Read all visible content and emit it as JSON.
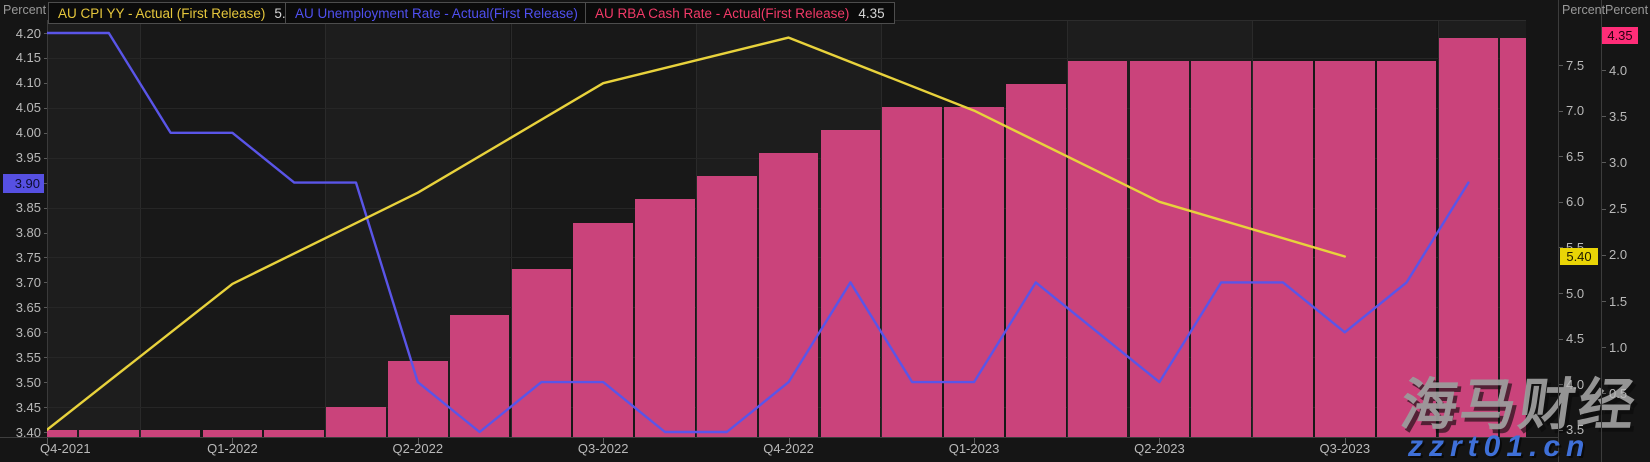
{
  "header": {
    "legend": [
      {
        "label": "AU CPI YY - Actual (First Release)",
        "value": "5.40"
      },
      {
        "label": "AU Unemployment Rate - Actual(First Release)",
        "value": "3.90"
      },
      {
        "label": "AU RBA Cash Rate - Actual(First Release)",
        "value": "4.35"
      }
    ]
  },
  "colors": {
    "cpi_yellow": "#e8d23c",
    "unemployment_blue": "#5a55e8",
    "cash_rate_pink": "#ca437b",
    "badge_cpi_bg": "#e9d406",
    "badge_unemployment_bg": "#5650e2",
    "badge_cash_bg": "#ff2d78",
    "background": "#151515"
  },
  "watermark": {
    "brand": "海马财经",
    "site": "zzrt01.cn"
  },
  "chart_data": {
    "type": "combo",
    "x_labels": [
      "Q4-2021",
      "Q1-2022",
      "Q2-2022",
      "Q3-2022",
      "Q4-2022",
      "Q1-2023",
      "Q2-2023",
      "Q3-2023"
    ],
    "axes": {
      "left": {
        "unit": "Percent",
        "min": 3.4,
        "max": 4.2,
        "tick_step": 0.05,
        "tick_labels": [
          "4.20",
          "4.15",
          "4.10",
          "4.05",
          "4.00",
          "3.95",
          "3.90",
          "3.85",
          "3.80",
          "3.75",
          "3.70",
          "3.65",
          "3.60",
          "3.55",
          "3.50",
          "3.45",
          "3.40"
        ],
        "current_value_badge": "3.90"
      },
      "right_inner": {
        "unit": "Percent",
        "min": 3.5,
        "max": 7.5,
        "tick_step": 0.5,
        "tick_labels": [
          "7.5",
          "7.0",
          "6.5",
          "6.0",
          "5.5",
          "5.0",
          "4.5",
          "4.0",
          "3.5"
        ],
        "current_value_badge": "5.40"
      },
      "right_outer": {
        "unit": "Percent",
        "min": 0.5,
        "max": 4.35,
        "tick_step": 0.5,
        "tick_labels": [
          "4.0",
          "3.5",
          "3.0",
          "2.5",
          "2.0",
          "1.5",
          "1.0",
          "0.5"
        ],
        "current_value_badge": "4.35"
      }
    },
    "series": [
      {
        "name": "AU RBA Cash Rate - Actual(First Release)",
        "type": "bar",
        "axis": "right_outer",
        "color": "#ca437b",
        "slot_stride": 1,
        "values": [
          0.1,
          0.1,
          0.1,
          0.1,
          0.1,
          0.35,
          0.85,
          1.35,
          1.85,
          2.35,
          2.6,
          2.85,
          3.1,
          3.35,
          3.6,
          3.6,
          3.85,
          4.1,
          4.1,
          4.1,
          4.1,
          4.1,
          4.1,
          4.35,
          4.35
        ]
      },
      {
        "name": "AU Unemployment Rate - Actual(First Release)",
        "type": "line",
        "axis": "left",
        "color": "#5a55e8",
        "slot_stride": 1,
        "values": [
          4.2,
          4.2,
          4.0,
          4.0,
          3.9,
          3.9,
          3.5,
          3.4,
          3.5,
          3.5,
          3.4,
          3.4,
          3.5,
          3.7,
          3.5,
          3.5,
          3.7,
          3.6,
          3.5,
          3.7,
          3.7,
          3.6,
          3.7,
          3.9
        ]
      },
      {
        "name": "AU CPI YY - Actual (First Release)",
        "type": "line",
        "axis": "right_inner",
        "color": "#e8d23c",
        "slot_stride": 3,
        "values": [
          3.5,
          5.1,
          6.1,
          7.3,
          7.8,
          7.0,
          6.0,
          5.4
        ]
      }
    ],
    "legend_position": "top",
    "grid": true
  }
}
